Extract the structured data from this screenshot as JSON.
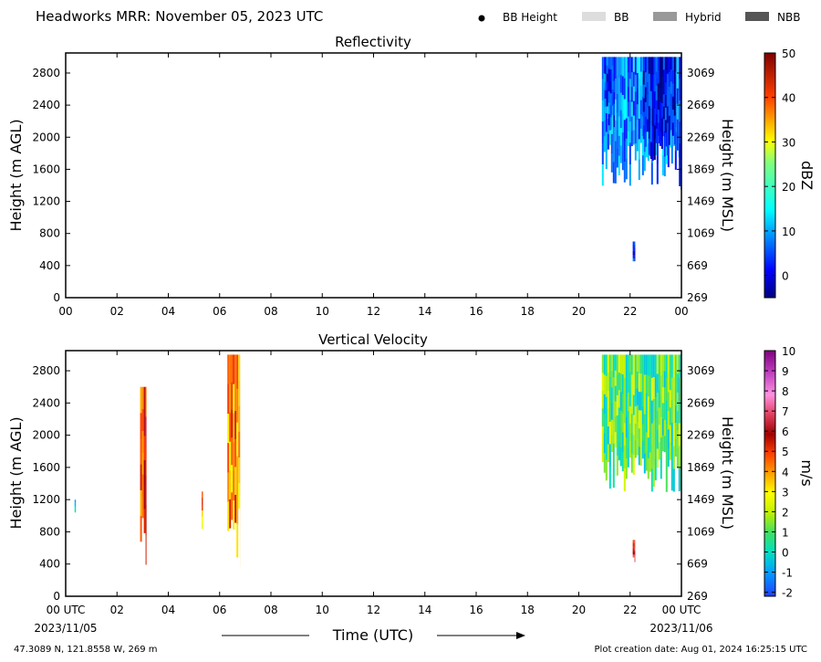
{
  "header": {
    "title": "Headworks MRR:  November 05, 2023 UTC",
    "legend": [
      {
        "label": "BB Height",
        "kind": "dot",
        "color": "#000000"
      },
      {
        "label": "BB",
        "kind": "swatch",
        "color": "#dddddd"
      },
      {
        "label": "Hybrid",
        "kind": "swatch",
        "color": "#999999"
      },
      {
        "label": "NBB",
        "kind": "swatch",
        "color": "#555555"
      }
    ]
  },
  "footer": {
    "xlabel": "Time (UTC)",
    "start_date": "2023/11/05",
    "end_date": "2023/11/06",
    "location": "47.3089 N, 121.8558 W, 269 m",
    "creation": "Plot creation date: Aug 01, 2024 16:25:15 UTC"
  },
  "chart_data": [
    {
      "type": "heatmap",
      "title": "Reflectivity",
      "xlabel": "",
      "ylabel": "Height (m AGL)",
      "ylabel_right": "Height (m MSL)",
      "colorbar_label": "dBZ",
      "xlim": [
        0,
        24
      ],
      "ylim": [
        0,
        3050
      ],
      "xticks": [
        "00",
        "02",
        "04",
        "06",
        "08",
        "10",
        "12",
        "14",
        "16",
        "18",
        "20",
        "22",
        "00"
      ],
      "yticks": [
        0,
        400,
        800,
        1200,
        1600,
        2000,
        2400,
        2800
      ],
      "yticks_right": [
        "269",
        "669",
        "1069",
        "1469",
        "1869",
        "2269",
        "2669",
        "3069"
      ],
      "colorbar_ticks": [
        "0",
        "10",
        "20",
        "30",
        "40",
        "50"
      ],
      "colorbar_range": [
        -5,
        50
      ],
      "colormap": "jet",
      "columns": [
        {
          "t_start": 20.9,
          "t_end": 24.0,
          "z_bottom": 1400,
          "z_top": 3000,
          "mean_value": 8
        },
        {
          "t_start": 21.0,
          "t_end": 21.4,
          "z_bottom": 2100,
          "z_top": 3000,
          "mean_value": 4
        },
        {
          "t_start": 22.5,
          "t_end": 23.8,
          "z_bottom": 1700,
          "z_top": 3000,
          "mean_value": 1
        },
        {
          "t_start": 23.9,
          "t_end": 24.0,
          "z_bottom": 1000,
          "z_top": 3000,
          "mean_value": 3
        },
        {
          "t_start": 22.1,
          "t_end": 22.2,
          "z_bottom": 400,
          "z_top": 700,
          "mean_value": 2
        }
      ]
    },
    {
      "type": "heatmap",
      "title": "Vertical Velocity",
      "xlabel": "Time (UTC)",
      "ylabel": "Height (m AGL)",
      "ylabel_right": "Height (m MSL)",
      "colorbar_label": "m/s",
      "xlim": [
        0,
        24
      ],
      "ylim": [
        0,
        3050
      ],
      "xticks": [
        "00 UTC",
        "02",
        "04",
        "06",
        "08",
        "10",
        "12",
        "14",
        "16",
        "18",
        "20",
        "22",
        "00 UTC"
      ],
      "yticks": [
        0,
        400,
        800,
        1200,
        1600,
        2000,
        2400,
        2800
      ],
      "yticks_right": [
        "269",
        "669",
        "1069",
        "1469",
        "1869",
        "2269",
        "2669",
        "3069"
      ],
      "colorbar_ticks": [
        "-2",
        "-1",
        "0",
        "1",
        "2",
        "3",
        "4",
        "5",
        "6",
        "7",
        "8",
        "9",
        "10"
      ],
      "colorbar_range": [
        -2.2,
        10
      ],
      "colormap": "velocity",
      "columns": [
        {
          "t_start": 0.35,
          "t_end": 0.4,
          "z_bottom": 1000,
          "z_top": 1200,
          "mean_value": 0.5
        },
        {
          "t_start": 2.9,
          "t_end": 3.15,
          "z_bottom": 300,
          "z_top": 2600,
          "mean_value": 5
        },
        {
          "t_start": 5.3,
          "t_end": 5.35,
          "z_bottom": 600,
          "z_top": 1300,
          "mean_value": 4
        },
        {
          "t_start": 6.3,
          "t_end": 6.8,
          "z_bottom": 300,
          "z_top": 3000,
          "mean_value": 4
        },
        {
          "t_start": 20.9,
          "t_end": 24.0,
          "z_bottom": 1300,
          "z_top": 3000,
          "mean_value": 1
        },
        {
          "t_start": 22.1,
          "t_end": 22.2,
          "z_bottom": 400,
          "z_top": 700,
          "mean_value": 6
        }
      ]
    }
  ]
}
